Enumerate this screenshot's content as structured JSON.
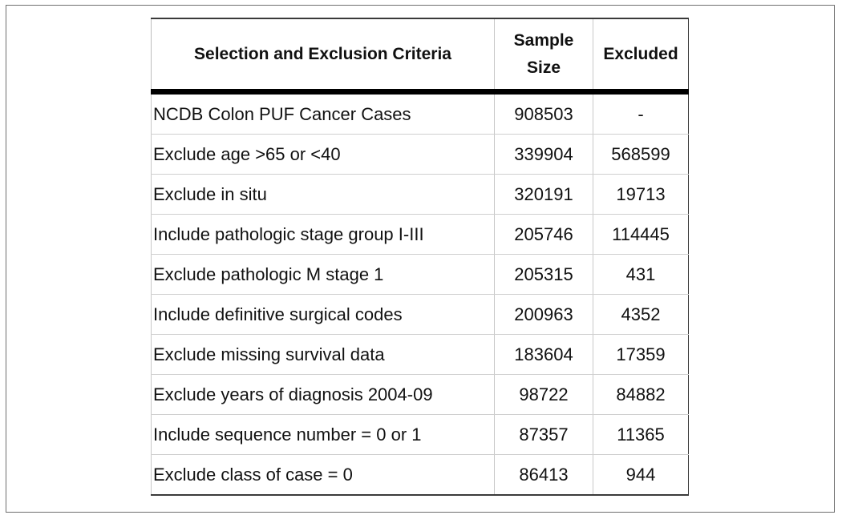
{
  "table": {
    "headers": {
      "criteria": "Selection and Exclusion Criteria",
      "sample_size_line1": "Sample",
      "sample_size_line2": "Size",
      "excluded": "Excluded"
    },
    "rows": [
      {
        "criteria": "NCDB Colon PUF Cancer Cases",
        "sample_size": "908503",
        "excluded": "-"
      },
      {
        "criteria": "Exclude age >65 or <40",
        "sample_size": "339904",
        "excluded": "568599"
      },
      {
        "criteria": "Exclude in situ",
        "sample_size": "320191",
        "excluded": "19713"
      },
      {
        "criteria": "Include pathologic stage group I-III",
        "sample_size": "205746",
        "excluded": "114445"
      },
      {
        "criteria": "Exclude pathologic M stage 1",
        "sample_size": "205315",
        "excluded": "431"
      },
      {
        "criteria": "Include definitive surgical codes",
        "sample_size": "200963",
        "excluded": "4352"
      },
      {
        "criteria": "Exclude missing survival data",
        "sample_size": "183604",
        "excluded": "17359"
      },
      {
        "criteria": "Exclude years of diagnosis 2004-09",
        "sample_size": "98722",
        "excluded": "84882"
      },
      {
        "criteria": "Include sequence number = 0 or 1",
        "sample_size": "87357",
        "excluded": "11365"
      },
      {
        "criteria": "Exclude class of case = 0",
        "sample_size": "86413",
        "excluded": "944"
      }
    ]
  }
}
